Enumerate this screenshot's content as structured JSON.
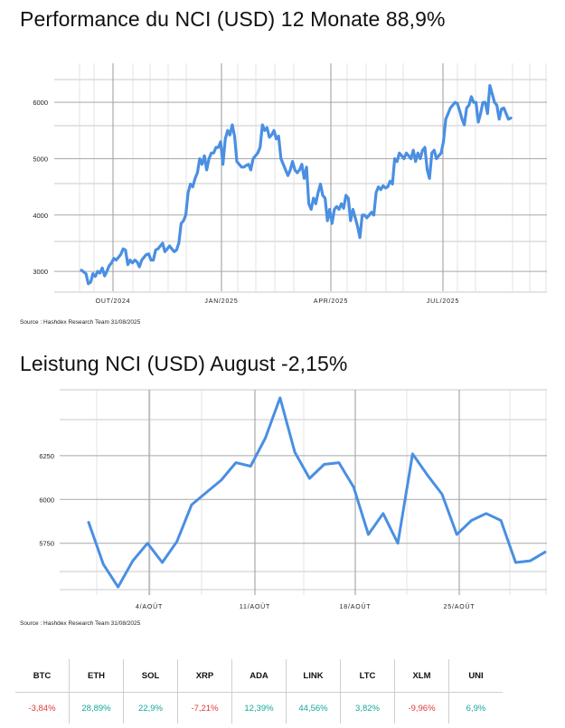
{
  "colors": {
    "line": "#4a8fe2",
    "grid": "#c9c9c9",
    "positive": "#12a89a",
    "negative": "#e23a3a"
  },
  "titles": {
    "chart1": "Performance du NCI (USD) 12 Monate 88,9%",
    "chart2": "Leistung NCI (USD) August -2,15%"
  },
  "sources": {
    "chart1": "Source : Hashdex Research Team 31/08/2025",
    "chart2": "Source : Hashdex Research Team 31/08/2025"
  },
  "chart_data": [
    {
      "type": "line",
      "title": "Performance du NCI (USD) 12 Monate 88,9%",
      "xlabel": "",
      "ylabel": "",
      "yticks": [
        3000,
        4000,
        5000,
        6000
      ],
      "xtick_labels": [
        "OUT/2024",
        "JAN/2025",
        "APR/2025",
        "JUL/2025"
      ],
      "ylim": [
        2600,
        6500
      ],
      "grid": true,
      "series": [
        {
          "values": [
            3020,
            2990,
            2960,
            2780,
            2810,
            2960,
            2910,
            3000,
            2970,
            3060,
            2920,
            3000,
            3100,
            3150,
            3230,
            3200,
            3250,
            3300,
            3400,
            3380,
            3120,
            3200,
            3150,
            3200,
            3170,
            3080,
            3200,
            3250,
            3300,
            3310,
            3200,
            3200,
            3380,
            3400,
            3450,
            3500,
            3350,
            3400,
            3450,
            3400,
            3350,
            3380,
            3500,
            3850,
            3900,
            4000,
            4400,
            4550,
            4500,
            4650,
            4750,
            5000,
            4900,
            5050,
            4800,
            5000,
            5100,
            5100,
            5200,
            5200,
            5300,
            4900,
            5350,
            5500,
            5420,
            5600,
            5400,
            4950,
            4900,
            4850,
            4850,
            4880,
            4900,
            4800,
            5000,
            5050,
            5100,
            5200,
            5600,
            5500,
            5550,
            5380,
            5420,
            5500,
            5350,
            5400,
            5000,
            4900,
            4800,
            4700,
            4800,
            4950,
            4800,
            4750,
            4800,
            4900,
            4650,
            4850,
            4200,
            4100,
            4300,
            4200,
            4400,
            4550,
            4350,
            4300,
            3900,
            4100,
            3850,
            4100,
            4150,
            4100,
            4200,
            4120,
            4350,
            4300,
            3900,
            4100,
            3950,
            3800,
            3600,
            4000,
            4000,
            3950,
            4000,
            4050,
            4000,
            4400,
            4500,
            4450,
            4520,
            4480,
            4500,
            4600,
            4550,
            5000,
            4950,
            5100,
            5050,
            5000,
            5100,
            5050,
            5000,
            5150,
            4950,
            5100,
            5000,
            5150,
            5200,
            4800,
            4650,
            5100,
            5150,
            5000,
            5050,
            5100,
            5300,
            5700,
            5800,
            5900,
            5950,
            6000,
            5980,
            5850,
            5700,
            5600,
            5900,
            5950,
            6100,
            6000,
            6000,
            5650,
            5800,
            6000,
            6000,
            5800,
            6300,
            6150,
            6000,
            5950,
            5700,
            5880,
            5900,
            5800,
            5700,
            5720
          ]
        }
      ]
    },
    {
      "type": "line",
      "title": "Leistung NCI (USD) August -2,15%",
      "xlabel": "",
      "ylabel": "",
      "yticks": [
        5750,
        6000,
        6250
      ],
      "xtick_labels": [
        "4/AOÛT",
        "11/AOÛT",
        "18/AOÛT",
        "25/AOÛT"
      ],
      "ylim": [
        5480,
        6590
      ],
      "grid": true,
      "series": [
        {
          "values": [
            5870,
            5630,
            5500,
            5650,
            5750,
            5640,
            5760,
            5970,
            6040,
            6110,
            6210,
            6190,
            6350,
            6580,
            6270,
            6120,
            6200,
            6210,
            6070,
            5800,
            5920,
            5750,
            6260,
            6140,
            6030,
            5800,
            5880,
            5920,
            5880,
            5640,
            5650,
            5700
          ]
        }
      ]
    }
  ],
  "table": {
    "headers": [
      "BTC",
      "ETH",
      "SOL",
      "XRP",
      "ADA",
      "LINK",
      "LTC",
      "XLM",
      "UNI"
    ],
    "values": [
      "-3,84%",
      "28,89%",
      "22,9%",
      "-7,21%",
      "12,39%",
      "44,56%",
      "3,82%",
      "-9,96%",
      "6,9%"
    ],
    "signs": [
      "negative",
      "positive",
      "positive",
      "negative",
      "positive",
      "positive",
      "positive",
      "negative",
      "positive"
    ]
  }
}
